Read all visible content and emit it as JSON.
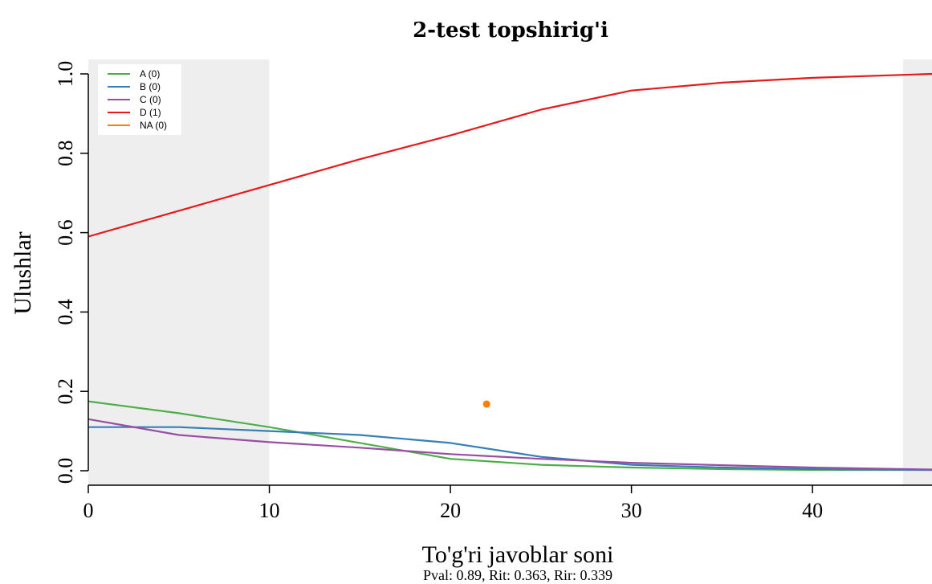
{
  "chart_data": {
    "type": "line",
    "title": "2-test topshirig'i",
    "xlabel": "To'g'ri javoblar soni",
    "ylabel": "Ulushlar",
    "subtitle": "Pval: 0.89, Rit: 0.363, Rir: 0.339",
    "xlim": [
      0,
      46.6
    ],
    "ylim": [
      0,
      1
    ],
    "xticks": [
      0,
      10,
      20,
      30,
      40
    ],
    "yticks": [
      0.0,
      0.2,
      0.4,
      0.6,
      0.8,
      1.0
    ],
    "ytick_labels": [
      "0.0",
      "0.2",
      "0.4",
      "0.6",
      "0.8",
      "1.0"
    ],
    "shaded_x_ranges": [
      [
        0,
        10
      ],
      [
        45,
        46.6
      ]
    ],
    "legend_position": "top-left",
    "grid": false,
    "series": [
      {
        "name": "A (0)",
        "color": "#4daf4a",
        "x": [
          0,
          5,
          10,
          15,
          20,
          25,
          30,
          35,
          40,
          46.6
        ],
        "y": [
          0.175,
          0.145,
          0.11,
          0.07,
          0.03,
          0.015,
          0.008,
          0.004,
          0.002,
          0.002
        ]
      },
      {
        "name": "B (0)",
        "color": "#377eb8",
        "x": [
          0,
          5,
          10,
          15,
          20,
          25,
          30,
          35,
          40,
          46.6
        ],
        "y": [
          0.11,
          0.11,
          0.1,
          0.09,
          0.07,
          0.035,
          0.015,
          0.008,
          0.004,
          0.002
        ]
      },
      {
        "name": "C (0)",
        "color": "#984ea3",
        "x": [
          0,
          5,
          10,
          15,
          20,
          25,
          30,
          35,
          40,
          46.6
        ],
        "y": [
          0.13,
          0.09,
          0.072,
          0.058,
          0.042,
          0.03,
          0.02,
          0.014,
          0.008,
          0.003
        ]
      },
      {
        "name": "D (1)",
        "color": "#e41a1c",
        "x": [
          0,
          5,
          10,
          15,
          20,
          25,
          30,
          35,
          40,
          46.6
        ],
        "y": [
          0.59,
          0.655,
          0.72,
          0.785,
          0.845,
          0.91,
          0.958,
          0.978,
          0.99,
          1.0
        ]
      },
      {
        "name": "NA (0)",
        "color": "#ff7f00",
        "type": "scatter",
        "x": [
          22
        ],
        "y": [
          0.168
        ]
      }
    ]
  }
}
